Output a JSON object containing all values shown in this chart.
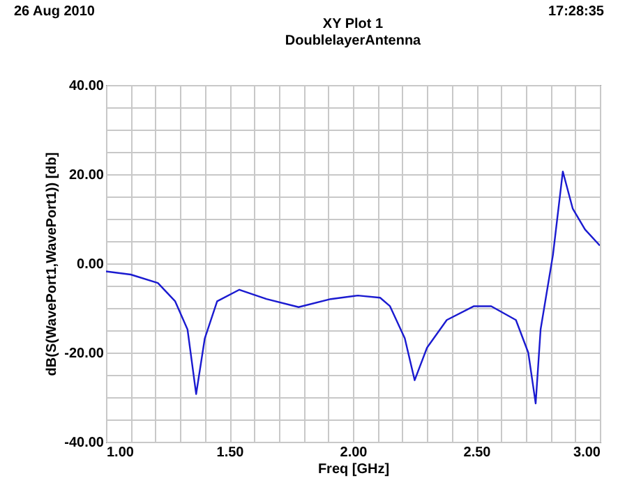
{
  "chart_data": {
    "type": "line",
    "title": "XY Plot 1",
    "subtitle": "DoublelayerAntenna",
    "xlabel": "Freq [GHz]",
    "ylabel": "dB(S(WavePort1,WavePort1)) [db]",
    "annotations": [
      "26 Aug 2010",
      "17:28:35"
    ],
    "series": [
      {
        "color": "#1a1ad0",
        "x": [
          1.0,
          1.1,
          1.21,
          1.28,
          1.33,
          1.365,
          1.4,
          1.45,
          1.54,
          1.65,
          1.78,
          1.91,
          2.02,
          2.11,
          2.15,
          2.21,
          2.25,
          2.3,
          2.38,
          2.49,
          2.56,
          2.66,
          2.71,
          2.74,
          2.76,
          2.81,
          2.85,
          2.89,
          2.94,
          3.0
        ],
        "values": [
          -1.8,
          -2.5,
          -4.4,
          -8.5,
          -14.8,
          -29.3,
          -16.8,
          -8.5,
          -5.9,
          -8.0,
          -9.8,
          -8.0,
          -7.2,
          -7.7,
          -9.6,
          -16.8,
          -26.2,
          -18.9,
          -12.7,
          -9.6,
          -9.6,
          -12.7,
          -20.0,
          -31.4,
          -14.8,
          1.9,
          20.6,
          12.3,
          7.6,
          4.0
        ]
      }
    ],
    "xlim": [
      1.0,
      3.0
    ],
    "xticks": [
      {
        "value": 1.0,
        "label": "1.00"
      },
      {
        "value": 1.1,
        "label": null
      },
      {
        "value": 1.2,
        "label": null
      },
      {
        "value": 1.3,
        "label": null
      },
      {
        "value": 1.4,
        "label": null
      },
      {
        "value": 1.5,
        "label": "1.50"
      },
      {
        "value": 1.6,
        "label": null
      },
      {
        "value": 1.7,
        "label": null
      },
      {
        "value": 1.8,
        "label": null
      },
      {
        "value": 1.9,
        "label": null
      },
      {
        "value": 2.0,
        "label": "2.00"
      },
      {
        "value": 2.1,
        "label": null
      },
      {
        "value": 2.2,
        "label": null
      },
      {
        "value": 2.3,
        "label": null
      },
      {
        "value": 2.4,
        "label": null
      },
      {
        "value": 2.5,
        "label": "2.50"
      },
      {
        "value": 2.6,
        "label": null
      },
      {
        "value": 2.7,
        "label": null
      },
      {
        "value": 2.8,
        "label": null
      },
      {
        "value": 2.9,
        "label": null
      },
      {
        "value": 3.0,
        "label": "3.00"
      }
    ],
    "ylim": [
      -40,
      40
    ],
    "yticks": [
      {
        "value": -40,
        "label": "-40.00"
      },
      {
        "value": -35,
        "label": null
      },
      {
        "value": -30,
        "label": null
      },
      {
        "value": -25,
        "label": null
      },
      {
        "value": -20,
        "label": "-20.00"
      },
      {
        "value": -15,
        "label": null
      },
      {
        "value": -10,
        "label": null
      },
      {
        "value": -5,
        "label": null
      },
      {
        "value": 0,
        "label": "0.00"
      },
      {
        "value": 5,
        "label": null
      },
      {
        "value": 10,
        "label": null
      },
      {
        "value": 15,
        "label": null
      },
      {
        "value": 20,
        "label": "20.00"
      },
      {
        "value": 25,
        "label": null
      },
      {
        "value": 30,
        "label": null
      },
      {
        "value": 35,
        "label": null
      },
      {
        "value": 40,
        "label": "40.00"
      }
    ],
    "grid": true,
    "line_style": "solid"
  }
}
